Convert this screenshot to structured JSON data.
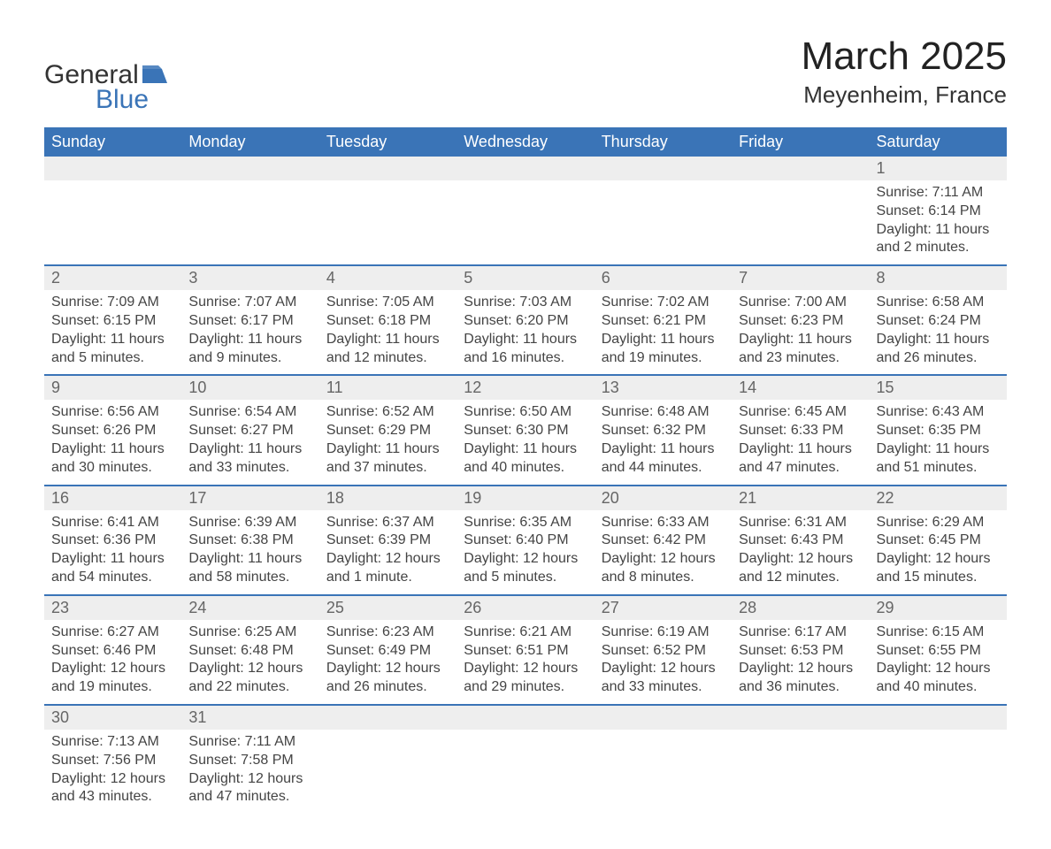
{
  "logo": {
    "text_general": "General",
    "text_blue": "Blue",
    "icon_color": "#3a74b7"
  },
  "header": {
    "month": "March 2025",
    "location": "Meyenheim, France"
  },
  "colors": {
    "header_bg": "#3a74b7",
    "header_text": "#ffffff",
    "daynum_bg": "#eeeeee",
    "daynum_text": "#666666",
    "body_text": "#444444",
    "border": "#3a74b7",
    "page_bg": "#ffffff"
  },
  "weekdays": [
    "Sunday",
    "Monday",
    "Tuesday",
    "Wednesday",
    "Thursday",
    "Friday",
    "Saturday"
  ],
  "labels": {
    "sunrise": "Sunrise:",
    "sunset": "Sunset:",
    "daylight": "Daylight:"
  },
  "weeks": [
    [
      null,
      null,
      null,
      null,
      null,
      null,
      {
        "d": "1",
        "sunrise": "7:11 AM",
        "sunset": "6:14 PM",
        "daylight": "11 hours and 2 minutes."
      }
    ],
    [
      {
        "d": "2",
        "sunrise": "7:09 AM",
        "sunset": "6:15 PM",
        "daylight": "11 hours and 5 minutes."
      },
      {
        "d": "3",
        "sunrise": "7:07 AM",
        "sunset": "6:17 PM",
        "daylight": "11 hours and 9 minutes."
      },
      {
        "d": "4",
        "sunrise": "7:05 AM",
        "sunset": "6:18 PM",
        "daylight": "11 hours and 12 minutes."
      },
      {
        "d": "5",
        "sunrise": "7:03 AM",
        "sunset": "6:20 PM",
        "daylight": "11 hours and 16 minutes."
      },
      {
        "d": "6",
        "sunrise": "7:02 AM",
        "sunset": "6:21 PM",
        "daylight": "11 hours and 19 minutes."
      },
      {
        "d": "7",
        "sunrise": "7:00 AM",
        "sunset": "6:23 PM",
        "daylight": "11 hours and 23 minutes."
      },
      {
        "d": "8",
        "sunrise": "6:58 AM",
        "sunset": "6:24 PM",
        "daylight": "11 hours and 26 minutes."
      }
    ],
    [
      {
        "d": "9",
        "sunrise": "6:56 AM",
        "sunset": "6:26 PM",
        "daylight": "11 hours and 30 minutes."
      },
      {
        "d": "10",
        "sunrise": "6:54 AM",
        "sunset": "6:27 PM",
        "daylight": "11 hours and 33 minutes."
      },
      {
        "d": "11",
        "sunrise": "6:52 AM",
        "sunset": "6:29 PM",
        "daylight": "11 hours and 37 minutes."
      },
      {
        "d": "12",
        "sunrise": "6:50 AM",
        "sunset": "6:30 PM",
        "daylight": "11 hours and 40 minutes."
      },
      {
        "d": "13",
        "sunrise": "6:48 AM",
        "sunset": "6:32 PM",
        "daylight": "11 hours and 44 minutes."
      },
      {
        "d": "14",
        "sunrise": "6:45 AM",
        "sunset": "6:33 PM",
        "daylight": "11 hours and 47 minutes."
      },
      {
        "d": "15",
        "sunrise": "6:43 AM",
        "sunset": "6:35 PM",
        "daylight": "11 hours and 51 minutes."
      }
    ],
    [
      {
        "d": "16",
        "sunrise": "6:41 AM",
        "sunset": "6:36 PM",
        "daylight": "11 hours and 54 minutes."
      },
      {
        "d": "17",
        "sunrise": "6:39 AM",
        "sunset": "6:38 PM",
        "daylight": "11 hours and 58 minutes."
      },
      {
        "d": "18",
        "sunrise": "6:37 AM",
        "sunset": "6:39 PM",
        "daylight": "12 hours and 1 minute."
      },
      {
        "d": "19",
        "sunrise": "6:35 AM",
        "sunset": "6:40 PM",
        "daylight": "12 hours and 5 minutes."
      },
      {
        "d": "20",
        "sunrise": "6:33 AM",
        "sunset": "6:42 PM",
        "daylight": "12 hours and 8 minutes."
      },
      {
        "d": "21",
        "sunrise": "6:31 AM",
        "sunset": "6:43 PM",
        "daylight": "12 hours and 12 minutes."
      },
      {
        "d": "22",
        "sunrise": "6:29 AM",
        "sunset": "6:45 PM",
        "daylight": "12 hours and 15 minutes."
      }
    ],
    [
      {
        "d": "23",
        "sunrise": "6:27 AM",
        "sunset": "6:46 PM",
        "daylight": "12 hours and 19 minutes."
      },
      {
        "d": "24",
        "sunrise": "6:25 AM",
        "sunset": "6:48 PM",
        "daylight": "12 hours and 22 minutes."
      },
      {
        "d": "25",
        "sunrise": "6:23 AM",
        "sunset": "6:49 PM",
        "daylight": "12 hours and 26 minutes."
      },
      {
        "d": "26",
        "sunrise": "6:21 AM",
        "sunset": "6:51 PM",
        "daylight": "12 hours and 29 minutes."
      },
      {
        "d": "27",
        "sunrise": "6:19 AM",
        "sunset": "6:52 PM",
        "daylight": "12 hours and 33 minutes."
      },
      {
        "d": "28",
        "sunrise": "6:17 AM",
        "sunset": "6:53 PM",
        "daylight": "12 hours and 36 minutes."
      },
      {
        "d": "29",
        "sunrise": "6:15 AM",
        "sunset": "6:55 PM",
        "daylight": "12 hours and 40 minutes."
      }
    ],
    [
      {
        "d": "30",
        "sunrise": "7:13 AM",
        "sunset": "7:56 PM",
        "daylight": "12 hours and 43 minutes."
      },
      {
        "d": "31",
        "sunrise": "7:11 AM",
        "sunset": "7:58 PM",
        "daylight": "12 hours and 47 minutes."
      },
      null,
      null,
      null,
      null,
      null
    ]
  ]
}
